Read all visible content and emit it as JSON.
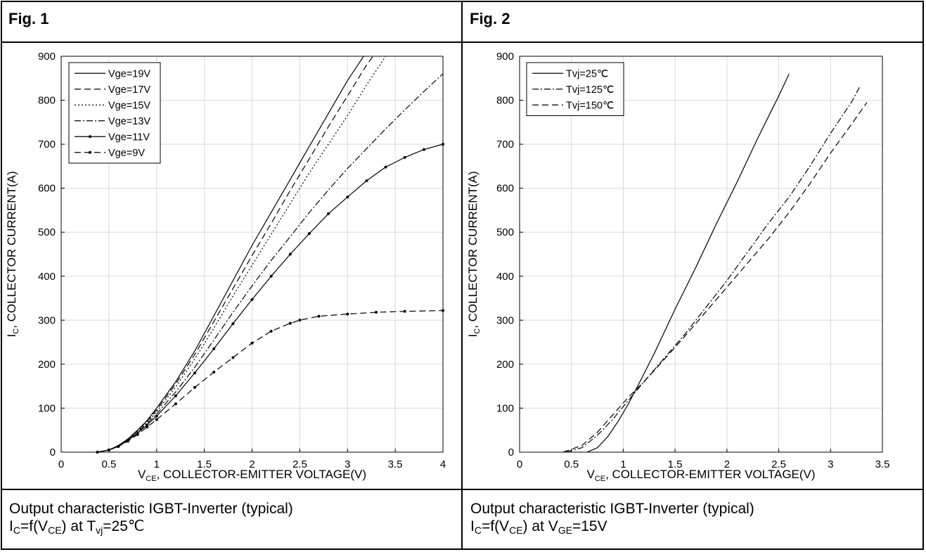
{
  "figures": [
    {
      "title": "Fig. 1",
      "caption": {
        "line1": "Output characteristic IGBT-Inverter (typical)",
        "l2_a": "I",
        "l2_a_sub": "C",
        "l2_b": "=f(V",
        "l2_b_sub": "CE",
        "l2_c": ") at T",
        "l2_c_sub": "vj",
        "l2_d": "=25℃"
      }
    },
    {
      "title": "Fig. 2",
      "caption": {
        "line1": "Output characteristic IGBT-Inverter (typical)",
        "l2_a": "I",
        "l2_a_sub": "C",
        "l2_b": "=f(V",
        "l2_b_sub": "CE",
        "l2_c": ") at V",
        "l2_c_sub": "GE",
        "l2_d": "=15V"
      }
    }
  ],
  "chart_data": [
    {
      "type": "line",
      "xlabel": {
        "main": "V",
        "sub": "CE",
        "rest": ", COLLECTOR-EMITTER VOLTAGE(V)"
      },
      "ylabel": {
        "main": "I",
        "sub": "C",
        "rest": ", COLLECTOR CURRENT(A)"
      },
      "xlim": [
        0,
        4
      ],
      "ylim": [
        0,
        900
      ],
      "xticks": [
        0,
        0.5,
        1,
        1.5,
        2,
        2.5,
        3,
        3.5,
        4
      ],
      "xtick_labels": [
        "0",
        "0.5",
        "1",
        "1.5",
        "2",
        "2.5",
        "3",
        "3.5",
        "4"
      ],
      "yticks": [
        0,
        100,
        200,
        300,
        400,
        500,
        600,
        700,
        800,
        900
      ],
      "ytick_labels": [
        "0",
        "100",
        "200",
        "300",
        "400",
        "500",
        "600",
        "700",
        "800",
        "900"
      ],
      "grid": true,
      "legend_position": "top-left",
      "series": [
        {
          "name": "Vge=19V",
          "dash": "solid",
          "color": "#000000",
          "x": [
            0.38,
            0.5,
            0.6,
            0.7,
            0.8,
            0.9,
            1.0,
            1.2,
            1.4,
            1.6,
            1.8,
            2.0,
            2.2,
            2.4,
            2.6,
            2.8,
            3.0,
            3.2,
            3.3
          ],
          "y": [
            0,
            5,
            15,
            30,
            50,
            72,
            100,
            160,
            230,
            310,
            390,
            470,
            545,
            620,
            695,
            770,
            845,
            910,
            950
          ]
        },
        {
          "name": "Vge=17V",
          "dash": "dashed",
          "color": "#000000",
          "x": [
            0.38,
            0.5,
            0.6,
            0.7,
            0.8,
            0.9,
            1.0,
            1.2,
            1.4,
            1.6,
            1.8,
            2.0,
            2.2,
            2.4,
            2.6,
            2.8,
            3.0,
            3.2,
            3.3
          ],
          "y": [
            0,
            5,
            15,
            30,
            49,
            70,
            96,
            155,
            222,
            297,
            372,
            447,
            520,
            595,
            667,
            740,
            810,
            880,
            910
          ]
        },
        {
          "name": "Vge=15V",
          "dash": "dotted",
          "color": "#000000",
          "x": [
            0.38,
            0.5,
            0.6,
            0.7,
            0.8,
            0.9,
            1.0,
            1.2,
            1.4,
            1.6,
            1.8,
            2.0,
            2.2,
            2.4,
            2.6,
            2.8,
            3.0,
            3.2,
            3.4
          ],
          "y": [
            0,
            5,
            14,
            29,
            47,
            68,
            92,
            148,
            212,
            282,
            355,
            425,
            495,
            565,
            635,
            700,
            765,
            835,
            900
          ]
        },
        {
          "name": "Vge=13V",
          "dash": "dashdot",
          "color": "#000000",
          "x": [
            0.38,
            0.5,
            0.6,
            0.7,
            0.8,
            0.9,
            1.0,
            1.2,
            1.4,
            1.6,
            1.8,
            2.0,
            2.2,
            2.4,
            2.6,
            2.8,
            3.0,
            3.2,
            3.4,
            3.6,
            3.8,
            4.0
          ],
          "y": [
            0,
            5,
            14,
            28,
            45,
            65,
            87,
            137,
            193,
            255,
            318,
            378,
            436,
            490,
            545,
            596,
            645,
            690,
            735,
            778,
            820,
            860
          ]
        },
        {
          "name": "Vge=11V",
          "dash": "solid",
          "color": "#000000",
          "marker": true,
          "x": [
            0.38,
            0.5,
            0.6,
            0.7,
            0.8,
            0.9,
            1.0,
            1.2,
            1.4,
            1.6,
            1.8,
            2.0,
            2.2,
            2.4,
            2.6,
            2.8,
            3.0,
            3.2,
            3.4,
            3.6,
            3.8,
            4.0
          ],
          "y": [
            0,
            5,
            13,
            27,
            43,
            62,
            82,
            128,
            180,
            235,
            292,
            347,
            400,
            450,
            497,
            542,
            580,
            617,
            648,
            670,
            688,
            700
          ]
        },
        {
          "name": "Vge=9V",
          "dash": "dashed",
          "color": "#000000",
          "marker": true,
          "x": [
            0.38,
            0.5,
            0.6,
            0.7,
            0.8,
            0.9,
            1.0,
            1.2,
            1.4,
            1.6,
            1.8,
            2.0,
            2.2,
            2.4,
            2.5,
            2.7,
            3.0,
            3.3,
            3.6,
            4.0
          ],
          "y": [
            0,
            5,
            13,
            25,
            40,
            57,
            74,
            110,
            147,
            182,
            215,
            248,
            275,
            293,
            300,
            309,
            314,
            318,
            320,
            322
          ]
        }
      ]
    },
    {
      "type": "line",
      "xlabel": {
        "main": "V",
        "sub": "CE",
        "rest": ", COLLECTOR-EMITTER VOLTAGE(V)"
      },
      "ylabel": {
        "main": "I",
        "sub": "C",
        "rest": ", COLLECTOR CURRENT(A)"
      },
      "xlim": [
        0,
        3.5
      ],
      "ylim": [
        0,
        900
      ],
      "xticks": [
        0,
        0.5,
        1,
        1.5,
        2,
        2.5,
        3,
        3.5
      ],
      "xtick_labels": [
        "0",
        "0.5",
        "1",
        "1.5",
        "2",
        "2.5",
        "3",
        "3.5"
      ],
      "yticks": [
        0,
        100,
        200,
        300,
        400,
        500,
        600,
        700,
        800,
        900
      ],
      "ytick_labels": [
        "0",
        "100",
        "200",
        "300",
        "400",
        "500",
        "600",
        "700",
        "800",
        "900"
      ],
      "grid": true,
      "legend_position": "top-left",
      "series": [
        {
          "name": "Tvj=25℃",
          "dash": "solid",
          "color": "#000000",
          "x": [
            0.65,
            0.75,
            0.85,
            0.95,
            1.05,
            1.15,
            1.3,
            1.5,
            1.7,
            1.9,
            2.1,
            2.3,
            2.5,
            2.6
          ],
          "y": [
            0,
            10,
            35,
            70,
            110,
            155,
            225,
            325,
            420,
            520,
            615,
            715,
            810,
            860
          ]
        },
        {
          "name": "Tvj=125℃",
          "dash": "dashdot",
          "color": "#000000",
          "x": [
            0.45,
            0.6,
            0.75,
            0.9,
            1.05,
            1.2,
            1.4,
            1.6,
            1.8,
            2.0,
            2.2,
            2.4,
            2.6,
            2.8,
            3.0,
            3.2,
            3.28
          ],
          "y": [
            0,
            10,
            38,
            75,
            118,
            160,
            215,
            270,
            330,
            390,
            455,
            520,
            580,
            650,
            725,
            795,
            830
          ]
        },
        {
          "name": "Tvj=150℃",
          "dash": "dashed",
          "color": "#000000",
          "x": [
            0.42,
            0.6,
            0.75,
            0.9,
            1.05,
            1.2,
            1.4,
            1.6,
            1.8,
            2.0,
            2.2,
            2.4,
            2.6,
            2.8,
            3.0,
            3.2,
            3.35
          ],
          "y": [
            0,
            15,
            45,
            85,
            125,
            160,
            212,
            265,
            320,
            375,
            430,
            485,
            545,
            610,
            680,
            745,
            795
          ]
        }
      ]
    }
  ]
}
